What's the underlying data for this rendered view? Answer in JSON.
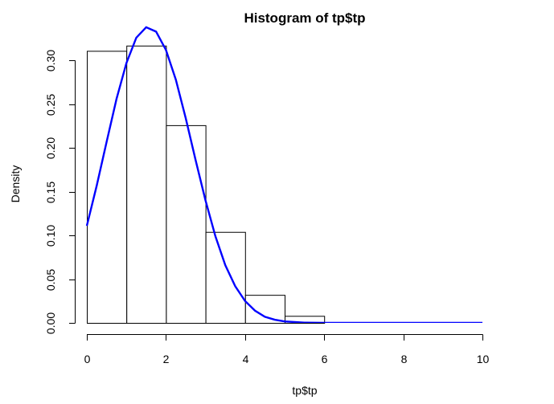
{
  "chart_data": {
    "type": "bar",
    "title": "Histogram of tp$tp",
    "xlabel": "tp$tp",
    "ylabel": "Density",
    "xlim": [
      0,
      11
    ],
    "ylim": [
      0,
      0.32
    ],
    "bins": [
      {
        "x0": 0,
        "x1": 1,
        "density": 0.311
      },
      {
        "x0": 1,
        "x1": 2,
        "density": 0.317
      },
      {
        "x0": 2,
        "x1": 3,
        "density": 0.226
      },
      {
        "x0": 3,
        "x1": 4,
        "density": 0.104
      },
      {
        "x0": 4,
        "x1": 5,
        "density": 0.032
      },
      {
        "x0": 5,
        "x1": 6,
        "density": 0.008
      }
    ],
    "x_ticks": [
      0,
      2,
      4,
      6,
      8,
      10
    ],
    "y_ticks": [
      "0.00",
      "0.05",
      "0.10",
      "0.15",
      "0.20",
      "0.25",
      "0.30"
    ],
    "curve": {
      "type": "line",
      "color": "#0000ff",
      "x": [
        0,
        0.25,
        0.5,
        0.75,
        1,
        1.25,
        1.5,
        1.75,
        2,
        2.25,
        2.5,
        2.75,
        3,
        3.25,
        3.5,
        3.75,
        4,
        4.25,
        4.5,
        4.75,
        5,
        5.5,
        6,
        7,
        8,
        9,
        10
      ],
      "y": [
        0.111,
        0.157,
        0.207,
        0.256,
        0.297,
        0.326,
        0.338,
        0.333,
        0.312,
        0.278,
        0.234,
        0.186,
        0.14,
        0.099,
        0.066,
        0.042,
        0.025,
        0.014,
        0.007,
        0.0036,
        0.0017,
        0.0003,
        4e-05,
        0,
        0,
        0,
        0
      ]
    }
  }
}
